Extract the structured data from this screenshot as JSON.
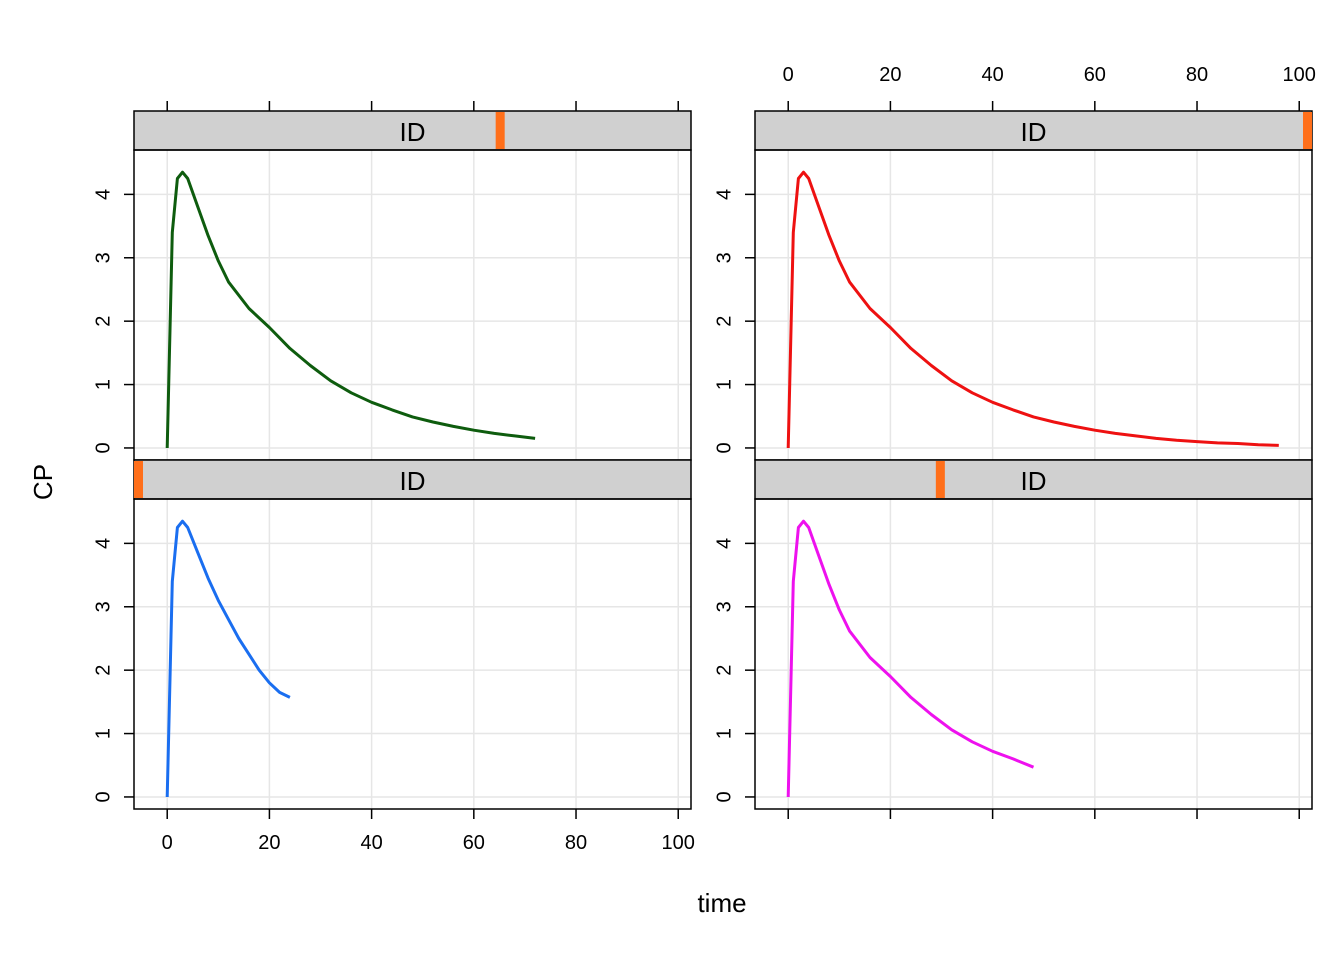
{
  "chart_data": {
    "type": "line",
    "xlabel": "time",
    "ylabel": "CP",
    "xlim": [
      -6.5,
      102.5
    ],
    "ylim": [
      -0.19,
      4.7
    ],
    "x_ticks": [
      0,
      20,
      40,
      60,
      80,
      100
    ],
    "y_ticks": [
      0,
      1,
      2,
      3,
      4
    ],
    "grid": true,
    "colors": {
      "grid": "#e6e6e6",
      "strip_bg": "#d0d0d0",
      "strip_marker": "#ff6f1a",
      "frame": "#000000"
    },
    "panels": [
      {
        "position": "top-left",
        "strip_label": "ID",
        "strip_marker": 0.66,
        "color": "#0e5c0e",
        "x": [
          0,
          1,
          2,
          3,
          4,
          6,
          8,
          10,
          12,
          16,
          20,
          24,
          28,
          32,
          36,
          40,
          44,
          48,
          52,
          56,
          60,
          64,
          68,
          72
        ],
        "y": [
          0,
          3.4,
          4.25,
          4.35,
          4.25,
          3.8,
          3.35,
          2.95,
          2.62,
          2.2,
          1.9,
          1.57,
          1.3,
          1.06,
          0.87,
          0.72,
          0.6,
          0.49,
          0.41,
          0.34,
          0.28,
          0.23,
          0.19,
          0.15
        ]
      },
      {
        "position": "top-right",
        "strip_label": "ID",
        "strip_marker": 1.0,
        "color": "#ee1111",
        "x": [
          0,
          1,
          2,
          3,
          4,
          6,
          8,
          10,
          12,
          16,
          20,
          24,
          28,
          32,
          36,
          40,
          44,
          48,
          52,
          56,
          60,
          64,
          68,
          72,
          76,
          80,
          84,
          88,
          92,
          96
        ],
        "y": [
          0,
          3.4,
          4.25,
          4.35,
          4.25,
          3.8,
          3.35,
          2.95,
          2.62,
          2.2,
          1.9,
          1.57,
          1.3,
          1.06,
          0.87,
          0.72,
          0.6,
          0.49,
          0.41,
          0.34,
          0.28,
          0.23,
          0.19,
          0.15,
          0.12,
          0.1,
          0.08,
          0.07,
          0.05,
          0.04
        ]
      },
      {
        "position": "bottom-left",
        "strip_label": "ID",
        "strip_marker": 0.0,
        "color": "#1a6ef0",
        "x": [
          0,
          1,
          2,
          3,
          4,
          6,
          8,
          10,
          12,
          14,
          16,
          18,
          20,
          22,
          24
        ],
        "y": [
          0,
          3.4,
          4.25,
          4.35,
          4.25,
          3.85,
          3.45,
          3.1,
          2.8,
          2.5,
          2.25,
          2.0,
          1.8,
          1.65,
          1.57
        ]
      },
      {
        "position": "bottom-right",
        "strip_label": "ID",
        "strip_marker": 0.33,
        "color": "#ee11ee",
        "x": [
          0,
          1,
          2,
          3,
          4,
          6,
          8,
          10,
          12,
          16,
          20,
          24,
          28,
          32,
          36,
          40,
          44,
          48
        ],
        "y": [
          0,
          3.4,
          4.25,
          4.35,
          4.25,
          3.8,
          3.35,
          2.95,
          2.62,
          2.2,
          1.9,
          1.57,
          1.3,
          1.06,
          0.87,
          0.72,
          0.6,
          0.47
        ]
      }
    ]
  }
}
